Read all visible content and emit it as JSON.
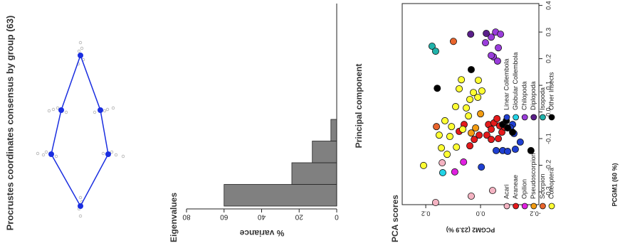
{
  "chart_data": [
    {
      "type": "landmarks",
      "title": "Procrustes coordinates consensus by group (63)",
      "color": "#1a2ee0",
      "point_color": "#b0b0b0",
      "landmarks": {
        "x": [
          0.53,
          0.145,
          -0.165,
          -0.53,
          -0.165,
          0.145
        ],
        "y": [
          0,
          0.135,
          0.205,
          0,
          -0.195,
          -0.14
        ]
      },
      "points": {
        "x": [
          0.56,
          0.5,
          0.58,
          0.47,
          0.62,
          0.15,
          0.13,
          0.16,
          0.14,
          -0.17,
          -0.15,
          -0.18,
          -0.16,
          -0.55,
          -0.5,
          -0.6,
          -0.47,
          -0.17,
          -0.15,
          -0.18,
          -0.16,
          0.15,
          0.13,
          0.16,
          0.14
        ],
        "y": [
          0.01,
          -0.02,
          -0.01,
          0.015,
          0,
          0.19,
          0.1,
          0.16,
          0.22,
          0.26,
          0.24,
          0.17,
          0.3,
          0.01,
          -0.01,
          0,
          0,
          -0.25,
          -0.22,
          -0.3,
          -0.16,
          -0.19,
          -0.1,
          -0.23,
          -0.17
        ]
      }
    },
    {
      "type": "bar",
      "title": "Eigenvalues",
      "xlabel": "Principal component",
      "ylabel": "% variance",
      "values": [
        60,
        23.9,
        13,
        3.1
      ],
      "color": "#808080",
      "ylim": [
        0,
        80
      ],
      "yticks": [
        0,
        20,
        40,
        60,
        80
      ]
    },
    {
      "type": "scatter",
      "title": "PCA scores",
      "xlabel": "PCGM1 (60 %)",
      "ylabel": "PCGM2 (23.9 %)",
      "xlim": [
        -0.348,
        0.407
      ],
      "ylim": [
        -0.213,
        0.286
      ],
      "xticks": [
        -0.3,
        -0.2,
        -0.1,
        {
          "value": 0,
          "label": "0.0"
        },
        0.1,
        0.2,
        0.3,
        0.4
      ],
      "yticks": [
        -0.2,
        {
          "value": 0,
          "label": "0.0"
        },
        0.2
      ],
      "legend": "bottomleft",
      "series": [
        {
          "name": "Acari",
          "color": "#f4b3c2",
          "x": [
            -0.34,
            -0.316,
            -0.295,
            -0.191
          ],
          "y": [
            0.164,
            0.034,
            -0.044,
            0.14
          ]
        },
        {
          "name": "Araneae",
          "color": "#e41a1c",
          "x": [
            -0.073,
            -0.047,
            -0.127,
            -0.103,
            -0.087,
            -0.087,
            -0.047,
            -0.065,
            -0.041,
            -0.025,
            -0.052,
            -0.076,
            -0.057,
            -0.1,
            -0.103
          ],
          "y": [
            0.078,
            0.06,
            0.039,
            0.023,
            0.005,
            -0.023,
            -0.029,
            -0.039,
            -0.049,
            -0.06,
            -0.07,
            -0.078,
            -0.088,
            -0.065,
            -0.039
          ]
        },
        {
          "name": "Opilion",
          "color": "#e020e0",
          "x": [
            -0.225,
            -0.188
          ],
          "y": [
            0.094,
            0.062
          ]
        },
        {
          "name": "Pseudoscorpion",
          "color": "#f39c12",
          "x": [
            -0.079,
            -0.06,
            -0.007
          ],
          "y": [
            0.034,
            0.018,
            0
          ]
        },
        {
          "name": "Scorpion",
          "color": "#e8642c",
          "x": [
            0.265,
            -0.055
          ],
          "y": [
            0.099,
            0.161
          ]
        },
        {
          "name": "Coleoptera",
          "color": "#ffff33",
          "x": [
            -0.201,
            -0.135,
            -0.159,
            -0.087,
            -0.033,
            -0.092,
            -0.132,
            -0.065,
            0.015,
            0.047,
            0.073,
            0.055,
            0.079,
            0.121,
            0.087,
            0.02,
            -0.015,
            0.119,
            -0.055
          ],
          "y": [
            0.208,
            0.143,
            0.122,
            0.151,
            0.13,
            0.112,
            0.088,
            0.065,
            0.052,
            0.039,
            0.026,
            0.01,
            -0.005,
            0.07,
            0.078,
            0.091,
            0.044,
            0.008,
            0.106
          ]
        },
        {
          "name": "Linear Collembola",
          "color": "#1f3fd1",
          "x": [
            -0.145,
            -0.145,
            -0.148,
            -0.14,
            -0.113,
            -0.047,
            -0.081,
            -0.06,
            -0.207
          ],
          "y": [
            -0.057,
            -0.081,
            -0.099,
            -0.127,
            -0.145,
            -0.117,
            -0.122,
            -0.109,
            -0.003
          ]
        },
        {
          "name": "Globular Collembola",
          "color": "#22d3e6",
          "x": [
            -0.228
          ],
          "y": [
            0.138
          ]
        },
        {
          "name": "Chilopoda",
          "color": "#9a3ddb",
          "x": [
            0.26,
            0.281,
            0.3,
            0.292,
            0.207,
            0.191,
            0.241,
            0.212
          ],
          "y": [
            -0.018,
            -0.039,
            -0.055,
            -0.073,
            -0.047,
            -0.062,
            -0.065,
            -0.039
          ]
        },
        {
          "name": "Diplopoda",
          "color": "#5a1f8a",
          "x": [
            0.292,
            0.295
          ],
          "y": [
            0.036,
            -0.021
          ]
        },
        {
          "name": "Isopoda",
          "color": "#20b2aa",
          "x": [
            0.247,
            0.228
          ],
          "y": [
            0.177,
            0.164
          ]
        },
        {
          "name": "Other Insects",
          "color": "#000000",
          "x": [
            0.089,
            0.159,
            -0.047,
            -0.06,
            -0.076,
            -0.145,
            -0.033
          ],
          "y": [
            0.158,
            0.034,
            -0.081,
            -0.099,
            -0.117,
            -0.184,
            -0.094
          ]
        }
      ]
    }
  ]
}
